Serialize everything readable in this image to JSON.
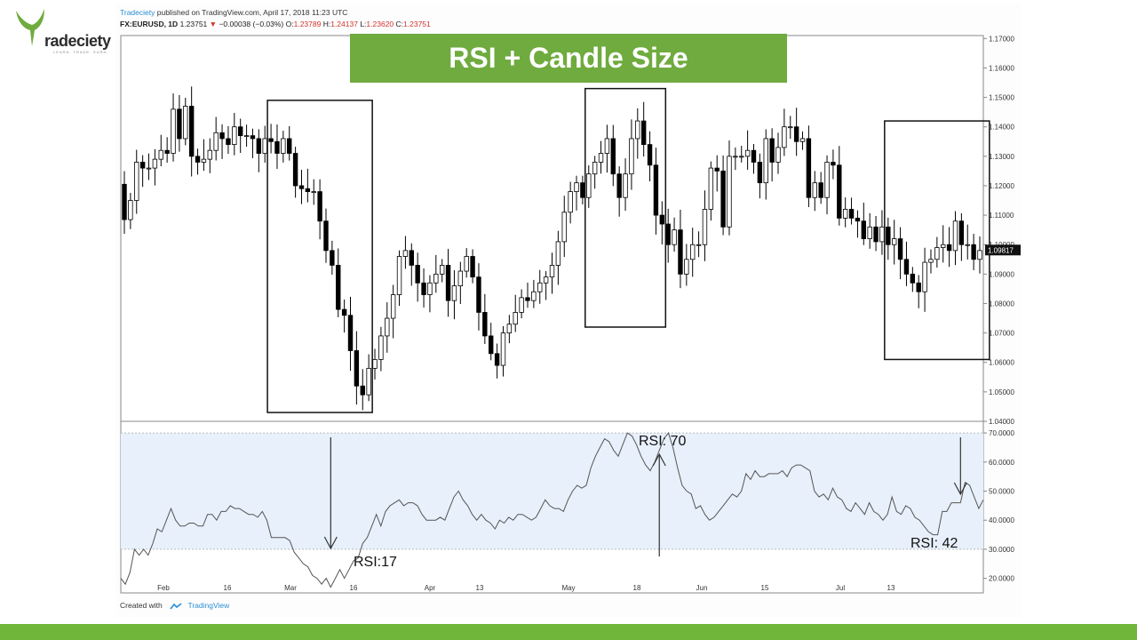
{
  "logo": {
    "text": "radeciety",
    "tagline": "LEARN. TRADE. EARN."
  },
  "header": {
    "brand": "Tradeciety",
    "published": "published on TradingView.com, April 17, 2018 11:23 UTC",
    "symbol": "FX:EURUSD, 1D",
    "price": "1.23751",
    "change": "−0.00038 (−0.03%)",
    "o_label": "O:",
    "o_value": "1.23789",
    "h_label": "H:",
    "h_value": "1.24137",
    "l_label": "L:",
    "l_value": "1.23620",
    "c_label": "C:",
    "c_value": "1.23751",
    "down_color": "#d0342c"
  },
  "banner": {
    "title": "RSI + Candle Size",
    "color": "#6fab3e"
  },
  "footer": {
    "created_with": "Created with",
    "tradingview": "TradingView"
  },
  "chart_data": [
    {
      "type": "candlestick",
      "symbol": "EURUSD",
      "timeframe": "1D",
      "y_ticks": [
        1.04,
        1.05,
        1.06,
        1.07,
        1.08,
        1.09,
        1.1,
        1.11,
        1.12,
        1.13,
        1.14,
        1.15,
        1.16,
        1.17
      ],
      "y_tick_labels": [
        "1.04000",
        "1.05000",
        "1.06000",
        "1.07000",
        "1.08000",
        "1.09000",
        "1.10000",
        "1.11000",
        "1.12000",
        "1.13000",
        "1.14000",
        "1.15000",
        "1.16000",
        "1.17000"
      ],
      "ylim": [
        1.04,
        1.171
      ],
      "x_tick_labels": [
        "Feb",
        "16",
        "Mar",
        "16",
        "Apr",
        "13",
        "May",
        "18",
        "Jun",
        "15",
        "Jul",
        "13"
      ],
      "last_price_label": "1.09817",
      "last_price": 1.09817,
      "closes": [
        1.1085,
        1.115,
        1.128,
        1.126,
        1.126,
        1.129,
        1.132,
        1.131,
        1.146,
        1.136,
        1.147,
        1.13,
        1.128,
        1.129,
        1.132,
        1.138,
        1.136,
        1.134,
        1.14,
        1.137,
        1.137,
        1.136,
        1.131,
        1.136,
        1.135,
        1.131,
        1.136,
        1.131,
        1.12,
        1.119,
        1.118,
        1.118,
        1.108,
        1.098,
        1.093,
        1.078,
        1.076,
        1.064,
        1.052,
        1.049,
        1.058,
        1.061,
        1.069,
        1.075,
        1.083,
        1.096,
        1.098,
        1.093,
        1.087,
        1.083,
        1.087,
        1.09,
        1.093,
        1.081,
        1.086,
        1.091,
        1.096,
        1.089,
        1.077,
        1.069,
        1.063,
        1.059,
        1.07,
        1.073,
        1.077,
        1.082,
        1.081,
        1.084,
        1.087,
        1.089,
        1.093,
        1.101,
        1.111,
        1.118,
        1.121,
        1.116,
        1.124,
        1.128,
        1.131,
        1.136,
        1.124,
        1.116,
        1.124,
        1.136,
        1.142,
        1.134,
        1.127,
        1.11,
        1.107,
        1.1,
        1.105,
        1.09,
        1.095,
        1.1,
        1.1,
        1.112,
        1.126,
        1.125,
        1.106,
        1.13,
        1.13,
        1.13,
        1.132,
        1.128,
        1.121,
        1.136,
        1.128,
        1.133,
        1.14,
        1.14,
        1.135,
        1.136,
        1.116,
        1.121,
        1.116,
        1.128,
        1.127,
        1.109,
        1.112,
        1.109,
        1.108,
        1.102,
        1.106,
        1.101,
        1.106,
        1.1,
        1.102,
        1.095,
        1.09,
        1.087,
        1.084,
        1.094,
        1.095,
        1.099,
        1.1,
        1.098,
        1.108,
        1.1,
        1.1,
        1.095,
        1.098
      ],
      "highlight_boxes": [
        {
          "x_start_index": 24,
          "x_end_index": 40,
          "price_high": 1.149,
          "price_low": 1.043
        },
        {
          "x_start_index": 76,
          "x_end_index": 88,
          "price_high": 1.153,
          "price_low": 1.072
        },
        {
          "x_start_index": 125,
          "x_end_index": 141,
          "price_high": 1.142,
          "price_low": 1.061
        }
      ]
    },
    {
      "type": "line",
      "name": "RSI",
      "y_ticks": [
        20,
        30,
        40,
        50,
        60,
        70
      ],
      "y_tick_labels": [
        "20.0000",
        "30.0000",
        "40.0000",
        "50.0000",
        "60.0000",
        "70.0000"
      ],
      "ylim": [
        15,
        74
      ],
      "band": [
        30,
        70
      ],
      "band_color": "#e8f0fb",
      "line_color": "#555555",
      "values": [
        20,
        18,
        22,
        30,
        28,
        30,
        28,
        32,
        37,
        36,
        40,
        44,
        40,
        38,
        38,
        39,
        39,
        38,
        38,
        42,
        42,
        40,
        43,
        43,
        45,
        44,
        44,
        43,
        42,
        42,
        41,
        43,
        40,
        34,
        34,
        34,
        34,
        33,
        29,
        27,
        25,
        24,
        21,
        20,
        18,
        20,
        17,
        20,
        23,
        20,
        23,
        26,
        27,
        32,
        34,
        38,
        42,
        38,
        43,
        45,
        46,
        47,
        45,
        46,
        46,
        45,
        42,
        40,
        40,
        40,
        41,
        40,
        44,
        48,
        50,
        47,
        45,
        42,
        40,
        42,
        40,
        39,
        37,
        40,
        39,
        41,
        40,
        42,
        42,
        41,
        40,
        41,
        44,
        47,
        45,
        44,
        44,
        43,
        47,
        50,
        52,
        51,
        52,
        58,
        62,
        65,
        68,
        67,
        64,
        62,
        66,
        70,
        69,
        66,
        62,
        59,
        57,
        60,
        64,
        68,
        70,
        65,
        58,
        52,
        50,
        49,
        44,
        45,
        42,
        40,
        41,
        43,
        45,
        47,
        49,
        48,
        50,
        56,
        54,
        57,
        55,
        55,
        56,
        56,
        56,
        57,
        55,
        58,
        59,
        59,
        58,
        57,
        50,
        48,
        49,
        47,
        51,
        48,
        47,
        44,
        43,
        46,
        44,
        42,
        46,
        43,
        42,
        40,
        42,
        48,
        43,
        42,
        45,
        44,
        41,
        40,
        38,
        36,
        35,
        35,
        43,
        43,
        46,
        46,
        46,
        53,
        52,
        48,
        44,
        47
      ],
      "annotations": [
        {
          "text": "RSI:17",
          "arrow_index": 46
        },
        {
          "text": "RSI: 70",
          "arrow_index": 118
        },
        {
          "text": "RSI: 42",
          "arrow_index": 184
        }
      ]
    }
  ]
}
